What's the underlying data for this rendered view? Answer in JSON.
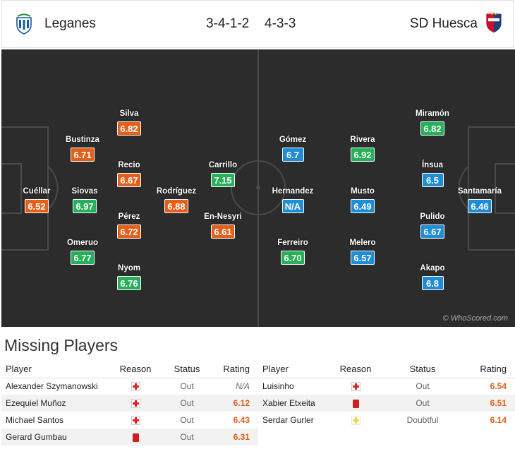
{
  "header": {
    "home_team": "Leganes",
    "home_formation": "3-4-1-2",
    "away_formation": "4-3-3",
    "away_team": "SD Huesca",
    "colors": {
      "home_logo": "#1a5aa0",
      "away_logo": "#1f3d7a",
      "away_logo_accent": "#c8102e"
    }
  },
  "pitch": {
    "background": "#2c2c2c",
    "watermark": "© WhoScored.com",
    "home_players": [
      {
        "name": "Cuéllar",
        "rating": "6.52",
        "color": "orange"
      },
      {
        "name": "Bustinza",
        "rating": "6.71",
        "color": "orange"
      },
      {
        "name": "Siovas",
        "rating": "6.97",
        "color": "green"
      },
      {
        "name": "Omeruo",
        "rating": "6.77",
        "color": "green"
      },
      {
        "name": "Silva",
        "rating": "6.82",
        "color": "orange"
      },
      {
        "name": "Recio",
        "rating": "6.67",
        "color": "orange"
      },
      {
        "name": "Pérez",
        "rating": "6.72",
        "color": "orange"
      },
      {
        "name": "Nyom",
        "rating": "6.76",
        "color": "green"
      },
      {
        "name": "Rodríguez",
        "rating": "6.88",
        "color": "orange"
      },
      {
        "name": "Carrillo",
        "rating": "7.15",
        "color": "green"
      },
      {
        "name": "En-Nesyri",
        "rating": "6.61",
        "color": "orange"
      }
    ],
    "away_players": [
      {
        "name": "Gómez",
        "rating": "6.7",
        "color": "blue"
      },
      {
        "name": "Hernandez",
        "rating": "N/A",
        "color": "blue"
      },
      {
        "name": "Ferreiro",
        "rating": "6.70",
        "color": "green"
      },
      {
        "name": "Rivera",
        "rating": "6.92",
        "color": "green"
      },
      {
        "name": "Musto",
        "rating": "6.49",
        "color": "blue"
      },
      {
        "name": "Melero",
        "rating": "6.57",
        "color": "blue"
      },
      {
        "name": "Miramón",
        "rating": "6.82",
        "color": "green"
      },
      {
        "name": "Ínsua",
        "rating": "6.5",
        "color": "blue"
      },
      {
        "name": "Pulido",
        "rating": "6.67",
        "color": "blue"
      },
      {
        "name": "Akapo",
        "rating": "6.8",
        "color": "blue"
      },
      {
        "name": "Santamaría",
        "rating": "6.46",
        "color": "blue"
      }
    ]
  },
  "missing": {
    "title": "Missing Players",
    "columns": {
      "player": "Player",
      "reason": "Reason",
      "status": "Status",
      "rating": "Rating"
    },
    "home": [
      {
        "player": "Alexander Szymanowski",
        "reason": "injury-icon",
        "status": "Out",
        "rating": "N/A"
      },
      {
        "player": "Ezequiel Muñoz",
        "reason": "injury-icon",
        "status": "Out",
        "rating": "6.12"
      },
      {
        "player": "Michael Santos",
        "reason": "injury-icon",
        "status": "Out",
        "rating": "6.43"
      },
      {
        "player": "Gerard Gumbau",
        "reason": "red-card-icon",
        "status": "Out",
        "rating": "6.31"
      }
    ],
    "away": [
      {
        "player": "Luisinho",
        "reason": "injury-icon",
        "status": "Out",
        "rating": "6.54"
      },
      {
        "player": "Xabier Etxeita",
        "reason": "red-card-icon",
        "status": "Out",
        "rating": "6.51"
      },
      {
        "player": "Serdar Gurler",
        "reason": "doubtful-icon",
        "status": "Doubtful",
        "rating": "6.14"
      }
    ]
  }
}
